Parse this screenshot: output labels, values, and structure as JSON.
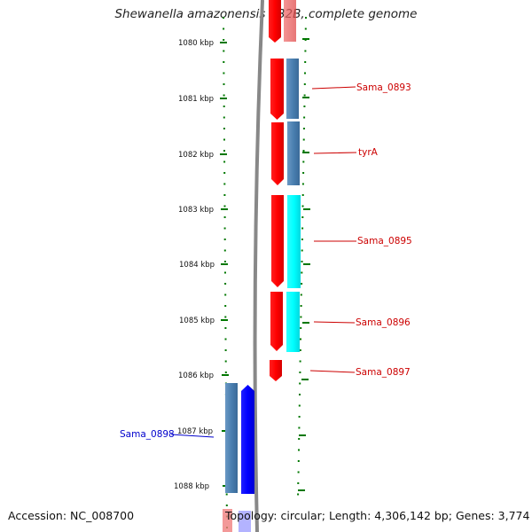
{
  "title": "Shewanella amazonensis SB2B, complete genome",
  "accession": {
    "label": "Accession:",
    "value": "NC_008700"
  },
  "summary": {
    "topology_label": "Topology:",
    "topology": "circular",
    "length_label": "Length:",
    "length": "4,306,142 bp",
    "genes_label": "Genes:",
    "genes": "3,774"
  },
  "ruler": {
    "ticks": [
      {
        "kbp": 1080,
        "label": "1080 kbp"
      },
      {
        "kbp": 1081,
        "label": "1081 kbp"
      },
      {
        "kbp": 1082,
        "label": "1082 kbp"
      },
      {
        "kbp": 1083,
        "label": "1083 kbp"
      },
      {
        "kbp": 1084,
        "label": "1084 kbp"
      },
      {
        "kbp": 1085,
        "label": "1085 kbp"
      },
      {
        "kbp": 1086,
        "label": "1086 kbp"
      },
      {
        "kbp": 1087,
        "label": "1087 kbp"
      },
      {
        "kbp": 1088,
        "label": "1088 kbp"
      }
    ]
  },
  "genes": [
    {
      "name": "Sama_0893",
      "strand": "forward",
      "color": "#cc0000"
    },
    {
      "name": "tyrA",
      "strand": "forward",
      "color": "#cc0000"
    },
    {
      "name": "Sama_0895",
      "strand": "forward",
      "color": "#cc0000"
    },
    {
      "name": "Sama_0896",
      "strand": "forward",
      "color": "#cc0000"
    },
    {
      "name": "Sama_0897",
      "strand": "forward",
      "color": "#cc0000"
    },
    {
      "name": "Sama_0898",
      "strand": "reverse",
      "color": "#0000cc"
    }
  ],
  "colors": {
    "forward_cds": "#ff0000",
    "reverse_cds": "#0000ff",
    "gene_steelblue": "#4a7fb0",
    "gene_cyan": "#00ffff",
    "backbone": "#888888",
    "tick_green": "#007700"
  }
}
